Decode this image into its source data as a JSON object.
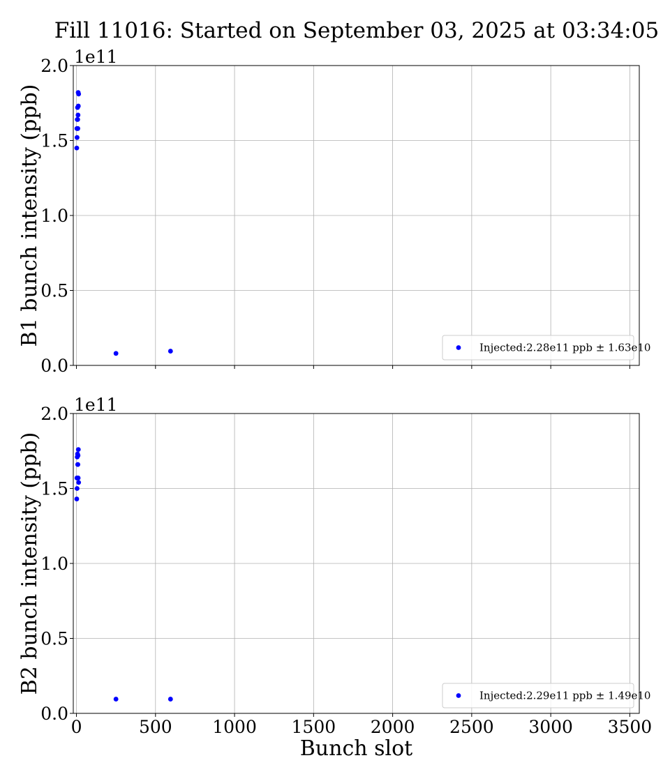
{
  "title": "Fill 11016: Started on September 03, 2025 at 03:34:05",
  "colors": {
    "points": "#0000ff",
    "grid": "#b0b0b0",
    "axes": "#000000"
  },
  "chart_data": [
    {
      "type": "scatter",
      "title": "",
      "xlabel": "",
      "ylabel": "B1 bunch intensity (ppb)",
      "multiplier": "1e11",
      "xlim": [
        -20,
        3560
      ],
      "ylim": [
        0.0,
        2.0
      ],
      "xticks": [
        0,
        500,
        1000,
        1500,
        2000,
        2500,
        3000,
        3500
      ],
      "xtick_labels": [],
      "yticks": [
        0.0,
        0.5,
        1.0,
        1.5,
        2.0
      ],
      "ytick_labels": [
        "0.0",
        "0.5",
        "1.0",
        "1.5",
        "2.0"
      ],
      "grid": true,
      "legend_position": "lower-right",
      "series": [
        {
          "name": "Injected:2.28e11 ppb ± 1.63e10",
          "x": [
            2,
            4,
            6,
            8,
            10,
            12,
            14,
            3,
            5,
            7,
            9,
            11,
            250,
            595
          ],
          "y": [
            1.45,
            1.52,
            1.58,
            1.64,
            1.67,
            1.73,
            1.81,
            1.58,
            1.64,
            1.72,
            1.58,
            1.82,
            0.08,
            0.095
          ]
        }
      ]
    },
    {
      "type": "scatter",
      "title": "",
      "xlabel": "Bunch slot",
      "ylabel": "B2 bunch intensity (ppb)",
      "multiplier": "1e11",
      "xlim": [
        -20,
        3560
      ],
      "ylim": [
        0.0,
        2.0
      ],
      "xticks": [
        0,
        500,
        1000,
        1500,
        2000,
        2500,
        3000,
        3500
      ],
      "xtick_labels": [
        "0",
        "500",
        "1000",
        "1500",
        "2000",
        "2500",
        "3000",
        "3500"
      ],
      "yticks": [
        0.0,
        0.5,
        1.0,
        1.5,
        2.0
      ],
      "ytick_labels": [
        "0.0",
        "0.5",
        "1.0",
        "1.5",
        "2.0"
      ],
      "grid": true,
      "legend_position": "lower-right",
      "series": [
        {
          "name": "Injected:2.29e11 ppb ± 1.49e10",
          "x": [
            2,
            4,
            6,
            8,
            10,
            12,
            14,
            3,
            5,
            7,
            9,
            11,
            250,
            595
          ],
          "y": [
            1.43,
            1.5,
            1.57,
            1.66,
            1.72,
            1.76,
            1.54,
            1.57,
            1.71,
            1.73,
            1.66,
            1.57,
            0.095,
            0.095
          ]
        }
      ]
    }
  ]
}
